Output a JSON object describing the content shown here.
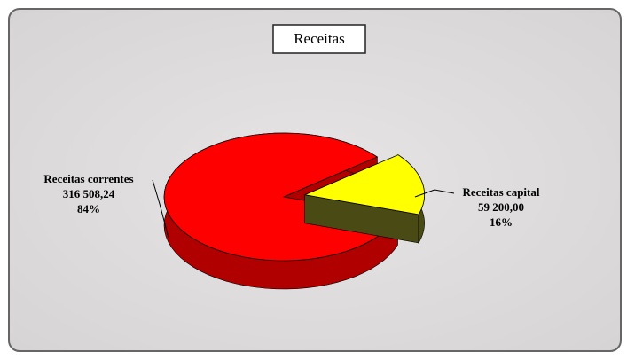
{
  "chart_data": {
    "type": "pie",
    "title": "Receitas",
    "categories": [
      "Receitas correntes",
      "Receitas capital"
    ],
    "values": [
      316508.24,
      59200.0
    ],
    "value_labels": [
      "316 508,24",
      "59 200,00"
    ],
    "percentages": [
      84,
      16
    ],
    "percentage_labels": [
      "84%",
      "16%"
    ],
    "colors": [
      "#ff0000",
      "#ffff00"
    ],
    "side_colors": [
      "#b00000",
      "#4a4a14"
    ]
  }
}
